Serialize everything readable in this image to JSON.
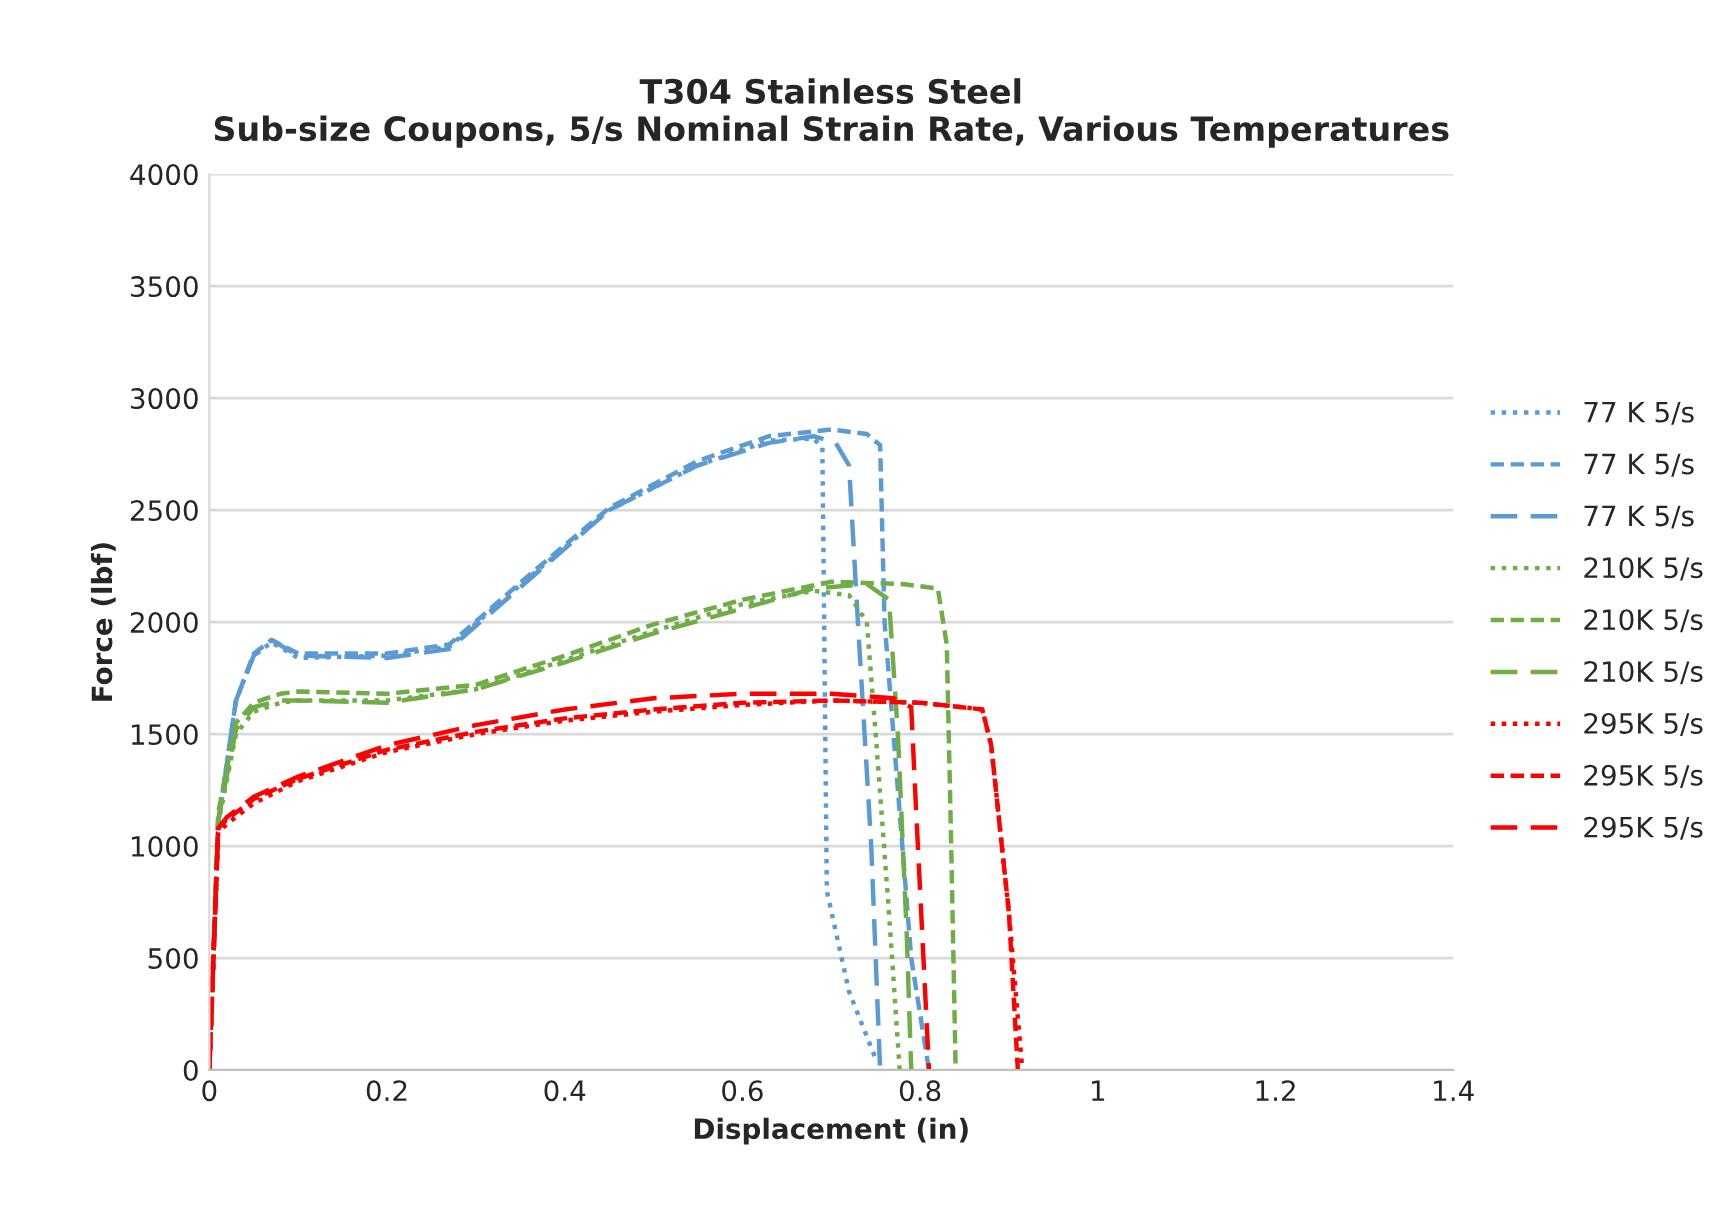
{
  "chart_data": {
    "type": "line",
    "title": "T304 Stainless Steel\nSub-size Coupons, 5/s Nominal Strain Rate, Various Temperatures",
    "xlabel": "Displacement (in)",
    "ylabel": "Force (lbf)",
    "xlim": [
      0,
      1.4
    ],
    "xticks": [
      0,
      0.2,
      0.4,
      0.6,
      0.8,
      1,
      1.2,
      1.4
    ],
    "ylim": [
      0,
      4000
    ],
    "yticks": [
      0,
      500,
      1000,
      1500,
      2000,
      2500,
      3000,
      3500,
      4000
    ],
    "grid": "y",
    "legend": "right",
    "marker": "none",
    "series": [
      {
        "name": "77 K 5/s",
        "color": "#5b9bd5",
        "line_style": "dotted",
        "x": [
          0,
          0.01,
          0.03,
          0.05,
          0.07,
          0.1,
          0.2,
          0.27,
          0.36,
          0.45,
          0.55,
          0.63,
          0.68,
          0.69,
          0.692,
          0.695,
          0.72,
          0.75
        ],
        "values": [
          0,
          1100,
          1650,
          1850,
          1910,
          1840,
          1850,
          1890,
          2200,
          2500,
          2700,
          2810,
          2820,
          2780,
          2000,
          800,
          350,
          50
        ]
      },
      {
        "name": "77 K 5/s",
        "color": "#5b9bd5",
        "line_style": "dashed",
        "x": [
          0,
          0.01,
          0.03,
          0.05,
          0.07,
          0.1,
          0.2,
          0.27,
          0.36,
          0.45,
          0.55,
          0.63,
          0.7,
          0.74,
          0.755,
          0.76,
          0.77,
          0.79,
          0.81
        ],
        "values": [
          0,
          1100,
          1650,
          1860,
          1920,
          1860,
          1860,
          1900,
          2210,
          2510,
          2720,
          2830,
          2860,
          2840,
          2790,
          2000,
          1500,
          500,
          0
        ]
      },
      {
        "name": "77 K 5/s",
        "color": "#5b9bd5",
        "line_style": "long_dashed",
        "x": [
          0,
          0.01,
          0.03,
          0.05,
          0.07,
          0.1,
          0.2,
          0.27,
          0.36,
          0.45,
          0.55,
          0.63,
          0.68,
          0.705,
          0.72,
          0.73,
          0.745,
          0.755
        ],
        "values": [
          0,
          1100,
          1650,
          1850,
          1920,
          1850,
          1840,
          1880,
          2190,
          2500,
          2700,
          2800,
          2830,
          2800,
          2700,
          2000,
          1000,
          0
        ]
      },
      {
        "name": "210K 5/s",
        "color": "#70ad47",
        "line_style": "dotted",
        "x": [
          0,
          0.01,
          0.03,
          0.05,
          0.08,
          0.1,
          0.2,
          0.3,
          0.4,
          0.5,
          0.6,
          0.68,
          0.72,
          0.74,
          0.75,
          0.765,
          0.777
        ],
        "values": [
          0,
          1100,
          1500,
          1600,
          1640,
          1650,
          1650,
          1700,
          1830,
          1960,
          2080,
          2140,
          2120,
          2000,
          1500,
          700,
          0
        ]
      },
      {
        "name": "210K 5/s",
        "color": "#70ad47",
        "line_style": "dashed",
        "x": [
          0,
          0.01,
          0.03,
          0.05,
          0.08,
          0.1,
          0.2,
          0.3,
          0.4,
          0.5,
          0.6,
          0.7,
          0.78,
          0.82,
          0.83,
          0.835,
          0.84
        ],
        "values": [
          0,
          1150,
          1550,
          1640,
          1680,
          1690,
          1680,
          1720,
          1850,
          1990,
          2100,
          2180,
          2170,
          2150,
          1900,
          1000,
          0
        ]
      },
      {
        "name": "210K 5/s",
        "color": "#70ad47",
        "line_style": "long_dashed",
        "x": [
          0,
          0.01,
          0.03,
          0.05,
          0.08,
          0.1,
          0.2,
          0.3,
          0.4,
          0.5,
          0.6,
          0.68,
          0.74,
          0.765,
          0.775,
          0.785,
          0.79
        ],
        "values": [
          0,
          1120,
          1520,
          1620,
          1650,
          1650,
          1640,
          1700,
          1820,
          1950,
          2060,
          2150,
          2170,
          2100,
          1500,
          600,
          0
        ]
      },
      {
        "name": "295K 5/s",
        "color": "#ff0000",
        "line_style": "dotted",
        "x": [
          0,
          0.01,
          0.02,
          0.05,
          0.1,
          0.2,
          0.3,
          0.4,
          0.5,
          0.6,
          0.7,
          0.8,
          0.87,
          0.88,
          0.9,
          0.915
        ],
        "values": [
          0,
          1060,
          1100,
          1190,
          1290,
          1420,
          1500,
          1560,
          1600,
          1630,
          1650,
          1640,
          1610,
          1450,
          700,
          0
        ]
      },
      {
        "name": "295K 5/s",
        "color": "#ff0000",
        "line_style": "dashed",
        "x": [
          0,
          0.01,
          0.02,
          0.05,
          0.1,
          0.2,
          0.3,
          0.4,
          0.5,
          0.6,
          0.7,
          0.8,
          0.87,
          0.88,
          0.9,
          0.91
        ],
        "values": [
          0,
          1080,
          1120,
          1210,
          1300,
          1430,
          1510,
          1570,
          1610,
          1640,
          1650,
          1640,
          1610,
          1450,
          700,
          0
        ]
      },
      {
        "name": "295K 5/s",
        "color": "#ff0000",
        "line_style": "long_dashed",
        "x": [
          0,
          0.01,
          0.02,
          0.05,
          0.1,
          0.2,
          0.3,
          0.4,
          0.5,
          0.6,
          0.7,
          0.77,
          0.79,
          0.795,
          0.805,
          0.81
        ],
        "values": [
          0,
          1080,
          1130,
          1220,
          1310,
          1450,
          1540,
          1610,
          1660,
          1680,
          1680,
          1660,
          1620,
          1200,
          400,
          0
        ]
      }
    ]
  }
}
